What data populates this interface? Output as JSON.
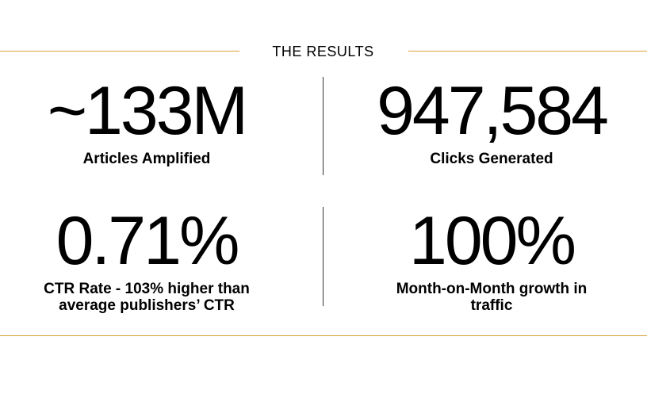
{
  "header": {
    "title": "THE RESULTS"
  },
  "stats": [
    {
      "value": "~133M",
      "label": "Articles Amplified"
    },
    {
      "value": "947,584",
      "label": "Clicks Generated"
    },
    {
      "value": "0.71%",
      "label": "CTR Rate - 103% higher than average publishers’ CTR"
    },
    {
      "value": "100%",
      "label": "Month-on-Month growth in traffic"
    }
  ]
}
